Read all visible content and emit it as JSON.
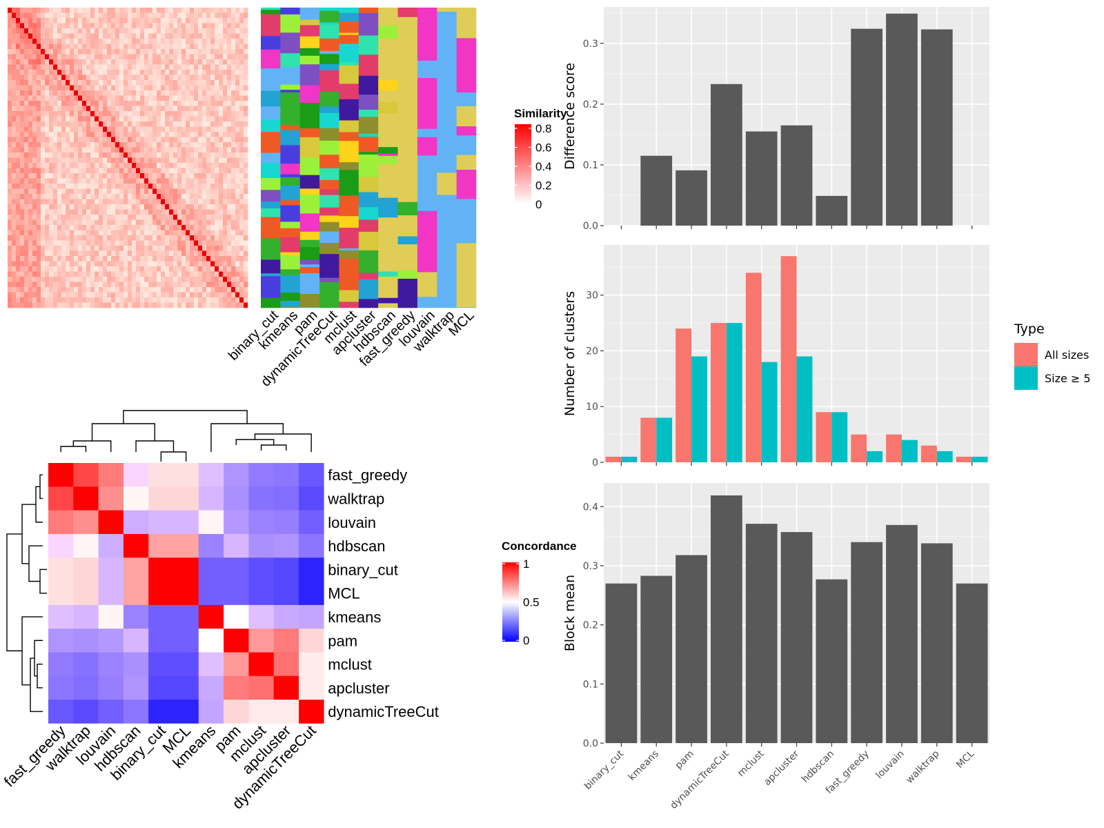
{
  "methods": [
    "binary_cut",
    "kmeans",
    "pam",
    "dynamicTreeCut",
    "mclust",
    "apcluster",
    "hdbscan",
    "fast_greedy",
    "louvain",
    "walktrap",
    "MCL"
  ],
  "similarity_heatmap": {
    "legend_title": "Similarity",
    "legend_ticks": [
      "0",
      "0.2",
      "0.4",
      "0.6",
      "0.8"
    ],
    "colors": {
      "low": "#ffffff",
      "high": "#ff0000"
    }
  },
  "concordance_heatmap": {
    "legend_title": "Concordance",
    "legend_ticks": [
      "0",
      "0.5",
      "1"
    ],
    "colors": {
      "low": "#0000ff",
      "mid": "#ffffff",
      "high": "#ff0000"
    }
  },
  "chart_data": [
    {
      "type": "bar",
      "title": "",
      "xlabel": "",
      "ylabel": "Difference score",
      "categories": [
        "binary_cut",
        "kmeans",
        "pam",
        "dynamicTreeCut",
        "mclust",
        "apcluster",
        "hdbscan",
        "fast_greedy",
        "louvain",
        "walktrap",
        "MCL"
      ],
      "values": [
        0,
        0.115,
        0.091,
        0.233,
        0.155,
        0.165,
        0.049,
        0.324,
        0.349,
        0.323,
        0
      ],
      "ylim": [
        0,
        0.36
      ],
      "y_ticks": [
        "0.0",
        "0.1",
        "0.2",
        "0.3"
      ],
      "grid": true,
      "color": "#595959"
    },
    {
      "type": "bar",
      "title": "",
      "xlabel": "",
      "ylabel": "Number of clusters",
      "categories": [
        "binary_cut",
        "kmeans",
        "pam",
        "dynamicTreeCut",
        "mclust",
        "apcluster",
        "hdbscan",
        "fast_greedy",
        "louvain",
        "walktrap",
        "MCL"
      ],
      "series": [
        {
          "name": "All sizes",
          "color": "#f8766d",
          "values": [
            1,
            8,
            24,
            25,
            34,
            37,
            9,
            5,
            5,
            3,
            1
          ]
        },
        {
          "name": "Size ≥ 5",
          "color": "#00bfc4",
          "values": [
            1,
            8,
            19,
            25,
            18,
            19,
            9,
            2,
            4,
            2,
            1
          ]
        }
      ],
      "legend_title": "Type",
      "legend_position": "right",
      "ylim": [
        0,
        39
      ],
      "y_ticks": [
        "0",
        "10",
        "20",
        "30"
      ],
      "grid": true
    },
    {
      "type": "bar",
      "title": "",
      "xlabel": "",
      "ylabel": "Block mean",
      "categories": [
        "binary_cut",
        "kmeans",
        "pam",
        "dynamicTreeCut",
        "mclust",
        "apcluster",
        "hdbscan",
        "fast_greedy",
        "louvain",
        "walktrap",
        "MCL"
      ],
      "values": [
        0.27,
        0.283,
        0.318,
        0.419,
        0.371,
        0.357,
        0.277,
        0.34,
        0.369,
        0.338,
        0.27
      ],
      "ylim": [
        0,
        0.44
      ],
      "y_ticks": [
        "0.0",
        "0.1",
        "0.2",
        "0.3",
        "0.4"
      ],
      "grid": true,
      "color": "#595959"
    }
  ]
}
